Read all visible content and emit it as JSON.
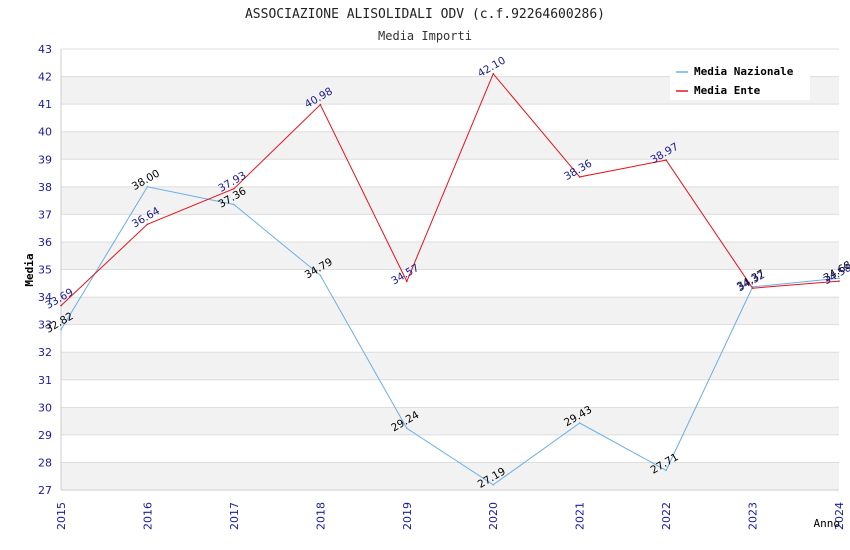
{
  "chart_data": {
    "type": "line",
    "title": "ASSOCIAZIONE ALISOLIDALI ODV (c.f.92264600286)",
    "subtitle": "Media Importi",
    "xlabel": "Anno",
    "ylabel": "Media",
    "x": [
      "2015",
      "2016",
      "2017",
      "2018",
      "2019",
      "2020",
      "2021",
      "2022",
      "2023",
      "2024"
    ],
    "ylim": [
      27,
      43
    ],
    "yticks": [
      "27",
      "28",
      "29",
      "30",
      "31",
      "32",
      "33",
      "34",
      "35",
      "36",
      "37",
      "38",
      "39",
      "40",
      "41",
      "42",
      "43"
    ],
    "grid": true,
    "legend_position": "top-right",
    "series": [
      {
        "name": "Media Nazionale",
        "color": "#6aaee8",
        "label_color": "#000000",
        "values": [
          32.82,
          38.0,
          37.36,
          34.79,
          29.24,
          27.19,
          29.43,
          27.71,
          34.37,
          34.68
        ],
        "labels": [
          "32.82",
          "38.00",
          "37.36",
          "34.79",
          "29.24",
          "27.19",
          "29.43",
          "27.71",
          "34.37",
          "34.68"
        ]
      },
      {
        "name": "Media Ente",
        "color": "#e8121a",
        "label_color": "#1a1a8c",
        "values": [
          33.69,
          36.64,
          37.93,
          40.98,
          34.57,
          42.1,
          38.36,
          38.97,
          34.32,
          34.58
        ],
        "labels": [
          "33.69",
          "36.64",
          "37.93",
          "40.98",
          "34.57",
          "42.10",
          "38.36",
          "38.97",
          "34.32",
          "34.58"
        ]
      }
    ]
  }
}
